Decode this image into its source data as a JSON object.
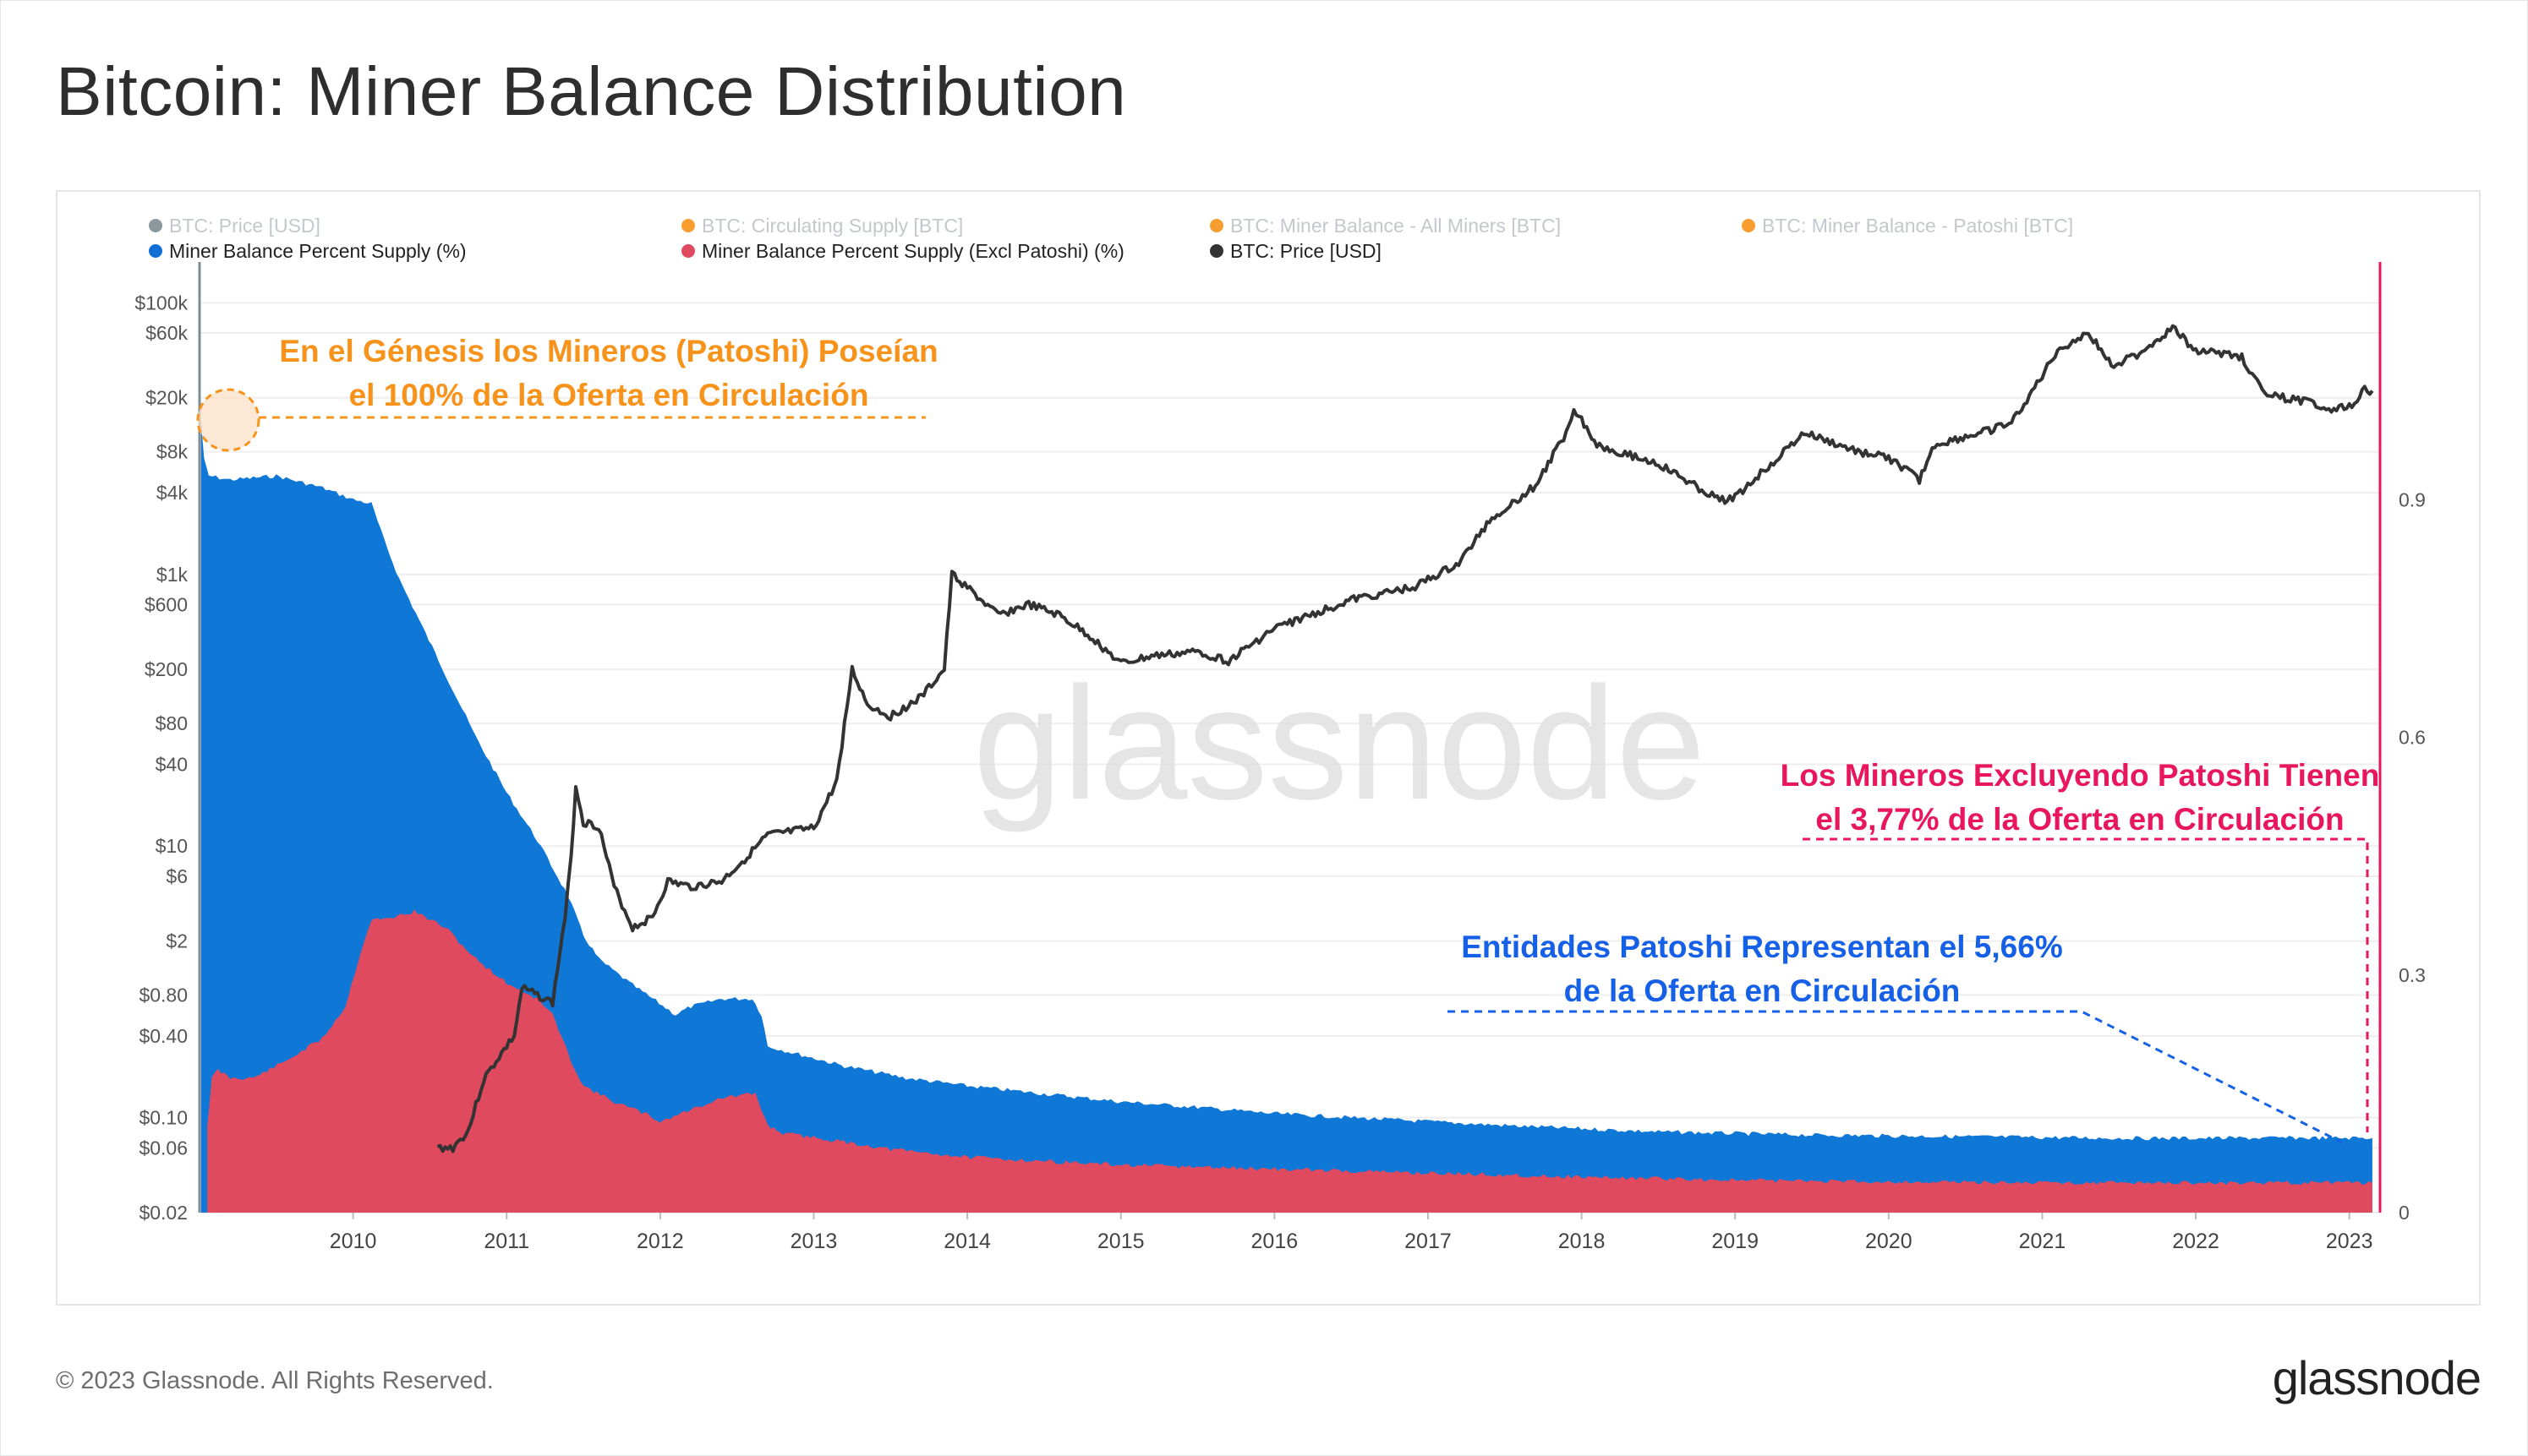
{
  "title": "Bitcoin: Miner Balance Distribution",
  "footer": {
    "copyright": "© 2023 Glassnode. All Rights Reserved.",
    "logo": "glassnode"
  },
  "watermark": "glassnode",
  "legend": [
    {
      "label": "BTC: Price [USD]",
      "color": "#7f8c94",
      "active": false
    },
    {
      "label": "BTC: Circulating Supply [BTC]",
      "color": "#f7931a",
      "active": false
    },
    {
      "label": "BTC: Miner Balance - All Miners [BTC]",
      "color": "#f7931a",
      "active": false
    },
    {
      "label": "BTC: Miner Balance - Patoshi [BTC]",
      "color": "#f7931a",
      "active": false
    },
    {
      "label": "Miner Balance Percent Supply (%)",
      "color": "#0f6fd6",
      "active": true
    },
    {
      "label": "Miner Balance Percent Supply (Excl Patoshi) (%)",
      "color": "#e04a5f",
      "active": true
    },
    {
      "label": "BTC: Price [USD]",
      "color": "#333333",
      "active": true
    }
  ],
  "annotations": {
    "genesis": {
      "lines": [
        "En el Génesis los Mineros (Patoshi) Poseían",
        "el 100% de la Oferta en Circulación"
      ],
      "color": "#f7931a"
    },
    "excl_patoshi": {
      "lines": [
        "Los Mineros Excluyendo Patoshi Tienen",
        "el 3,77% de la Oferta en Circulación"
      ],
      "color": "#e8175d"
    },
    "patoshi": {
      "lines": [
        "Entidades Patoshi Representan el 5,66%",
        "de la Oferta en Circulación"
      ],
      "color": "#1560e6"
    }
  },
  "colors": {
    "all_miners": "#0f77d6",
    "excl_patoshi": "#e04a5f",
    "price": "#333333",
    "right_axis": "#e8175d",
    "grid": "#eeeeee"
  },
  "chart_data": {
    "type": "area",
    "title": "Bitcoin: Miner Balance Distribution",
    "x_ticks": [
      "2010",
      "2011",
      "2012",
      "2013",
      "2014",
      "2015",
      "2016",
      "2017",
      "2018",
      "2019",
      "2020",
      "2021",
      "2022",
      "2023"
    ],
    "x_range": [
      2009.0,
      2023.2
    ],
    "y_left": {
      "scale": "log",
      "unit": "USD",
      "range": [
        0.02,
        200000
      ],
      "ticks": [
        {
          "v": 100000,
          "label": "$100k"
        },
        {
          "v": 60000,
          "label": "$60k"
        },
        {
          "v": 20000,
          "label": "$20k"
        },
        {
          "v": 8000,
          "label": "$8k"
        },
        {
          "v": 4000,
          "label": "$4k"
        },
        {
          "v": 1000,
          "label": "$1k"
        },
        {
          "v": 600,
          "label": "$600"
        },
        {
          "v": 200,
          "label": "$200"
        },
        {
          "v": 80,
          "label": "$80"
        },
        {
          "v": 40,
          "label": "$40"
        },
        {
          "v": 10,
          "label": "$10"
        },
        {
          "v": 6,
          "label": "$6"
        },
        {
          "v": 2,
          "label": "$2"
        },
        {
          "v": 0.8,
          "label": "$0.80"
        },
        {
          "v": 0.4,
          "label": "$0.40"
        },
        {
          "v": 0.1,
          "label": "$0.10"
        },
        {
          "v": 0.06,
          "label": "$0.06"
        },
        {
          "v": 0.02,
          "label": "$0.02"
        }
      ]
    },
    "y_right": {
      "scale": "linear",
      "range": [
        0,
        1.2
      ],
      "ticks": [
        {
          "v": 0,
          "label": "0"
        },
        {
          "v": 0.3,
          "label": "0.3"
        },
        {
          "v": 0.6,
          "label": "0.6"
        },
        {
          "v": 0.9,
          "label": "0.9"
        }
      ]
    },
    "series": [
      {
        "name": "Miner Balance Percent Supply (%)",
        "axis": "right",
        "points": [
          [
            2009.01,
            1.0
          ],
          [
            2009.03,
            0.95
          ],
          [
            2009.06,
            0.93
          ],
          [
            2009.2,
            0.925
          ],
          [
            2009.5,
            0.93
          ],
          [
            2009.8,
            0.915
          ],
          [
            2010.0,
            0.9
          ],
          [
            2010.12,
            0.895
          ],
          [
            2010.2,
            0.85
          ],
          [
            2010.3,
            0.8
          ],
          [
            2010.45,
            0.74
          ],
          [
            2010.6,
            0.68
          ],
          [
            2010.8,
            0.6
          ],
          [
            2011.0,
            0.53
          ],
          [
            2011.2,
            0.47
          ],
          [
            2011.4,
            0.4
          ],
          [
            2011.5,
            0.35
          ],
          [
            2011.6,
            0.32
          ],
          [
            2011.8,
            0.29
          ],
          [
            2011.95,
            0.27
          ],
          [
            2012.1,
            0.25
          ],
          [
            2012.2,
            0.26
          ],
          [
            2012.4,
            0.27
          ],
          [
            2012.6,
            0.27
          ],
          [
            2012.66,
            0.25
          ],
          [
            2012.7,
            0.21
          ],
          [
            2012.9,
            0.2
          ],
          [
            2013.2,
            0.185
          ],
          [
            2013.6,
            0.17
          ],
          [
            2014.0,
            0.16
          ],
          [
            2014.5,
            0.15
          ],
          [
            2015.0,
            0.14
          ],
          [
            2015.5,
            0.133
          ],
          [
            2016.0,
            0.125
          ],
          [
            2016.5,
            0.12
          ],
          [
            2017.0,
            0.115
          ],
          [
            2017.5,
            0.11
          ],
          [
            2018.0,
            0.106
          ],
          [
            2018.5,
            0.102
          ],
          [
            2019.0,
            0.1
          ],
          [
            2019.5,
            0.098
          ],
          [
            2020.0,
            0.097
          ],
          [
            2020.5,
            0.096
          ],
          [
            2021.0,
            0.095
          ],
          [
            2021.5,
            0.094
          ],
          [
            2022.0,
            0.094
          ],
          [
            2022.5,
            0.0943
          ],
          [
            2023.15,
            0.0943
          ]
        ]
      },
      {
        "name": "Miner Balance Percent Supply (Excl Patoshi) (%)",
        "axis": "right",
        "points": [
          [
            2009.05,
            0.11
          ],
          [
            2009.08,
            0.17
          ],
          [
            2009.12,
            0.18
          ],
          [
            2009.2,
            0.17
          ],
          [
            2009.35,
            0.17
          ],
          [
            2009.55,
            0.19
          ],
          [
            2009.8,
            0.22
          ],
          [
            2009.95,
            0.26
          ],
          [
            2010.05,
            0.33
          ],
          [
            2010.12,
            0.37
          ],
          [
            2010.2,
            0.37
          ],
          [
            2010.4,
            0.38
          ],
          [
            2010.6,
            0.36
          ],
          [
            2010.8,
            0.32
          ],
          [
            2011.0,
            0.29
          ],
          [
            2011.2,
            0.27
          ],
          [
            2011.3,
            0.25
          ],
          [
            2011.4,
            0.2
          ],
          [
            2011.5,
            0.16
          ],
          [
            2011.7,
            0.14
          ],
          [
            2011.9,
            0.125
          ],
          [
            2012.0,
            0.115
          ],
          [
            2012.2,
            0.13
          ],
          [
            2012.4,
            0.145
          ],
          [
            2012.62,
            0.15
          ],
          [
            2012.7,
            0.11
          ],
          [
            2012.8,
            0.1
          ],
          [
            2013.0,
            0.095
          ],
          [
            2013.5,
            0.08
          ],
          [
            2014.0,
            0.07
          ],
          [
            2015.0,
            0.06
          ],
          [
            2016.0,
            0.055
          ],
          [
            2017.0,
            0.05
          ],
          [
            2018.0,
            0.045
          ],
          [
            2019.0,
            0.041
          ],
          [
            2020.0,
            0.039
          ],
          [
            2021.0,
            0.038
          ],
          [
            2022.0,
            0.0377
          ],
          [
            2023.15,
            0.0377
          ]
        ]
      },
      {
        "name": "BTC: Price [USD]",
        "axis": "left",
        "points": [
          [
            2010.55,
            0.06
          ],
          [
            2010.65,
            0.06
          ],
          [
            2010.75,
            0.08
          ],
          [
            2010.85,
            0.19
          ],
          [
            2010.95,
            0.28
          ],
          [
            2011.05,
            0.4
          ],
          [
            2011.1,
            0.9
          ],
          [
            2011.2,
            0.8
          ],
          [
            2011.3,
            0.7
          ],
          [
            2011.38,
            3.0
          ],
          [
            2011.42,
            8.0
          ],
          [
            2011.45,
            28.0
          ],
          [
            2011.5,
            15.0
          ],
          [
            2011.6,
            14.0
          ],
          [
            2011.7,
            5.0
          ],
          [
            2011.82,
            2.5
          ],
          [
            2011.95,
            3.0
          ],
          [
            2012.05,
            5.5
          ],
          [
            2012.2,
            5.0
          ],
          [
            2012.4,
            5.5
          ],
          [
            2012.55,
            8.0
          ],
          [
            2012.7,
            12.0
          ],
          [
            2012.9,
            13.0
          ],
          [
            2013.0,
            13.5
          ],
          [
            2013.15,
            30.0
          ],
          [
            2013.25,
            200.0
          ],
          [
            2013.35,
            110.0
          ],
          [
            2013.5,
            90.0
          ],
          [
            2013.7,
            125.0
          ],
          [
            2013.85,
            200.0
          ],
          [
            2013.9,
            1000.0
          ],
          [
            2014.0,
            800.0
          ],
          [
            2014.2,
            500.0
          ],
          [
            2014.4,
            600.0
          ],
          [
            2014.6,
            500.0
          ],
          [
            2014.8,
            350.0
          ],
          [
            2015.0,
            220.0
          ],
          [
            2015.2,
            250.0
          ],
          [
            2015.5,
            270.0
          ],
          [
            2015.7,
            230.0
          ],
          [
            2016.0,
            400.0
          ],
          [
            2016.5,
            650.0
          ],
          [
            2016.9,
            800.0
          ],
          [
            2017.2,
            1200.0
          ],
          [
            2017.4,
            2500.0
          ],
          [
            2017.7,
            4500.0
          ],
          [
            2017.9,
            11000.0
          ],
          [
            2017.95,
            17000.0
          ],
          [
            2018.1,
            9000.0
          ],
          [
            2018.5,
            6500.0
          ],
          [
            2018.9,
            3500.0
          ],
          [
            2019.0,
            3700.0
          ],
          [
            2019.45,
            11000.0
          ],
          [
            2019.8,
            8000.0
          ],
          [
            2020.0,
            7200.0
          ],
          [
            2020.2,
            5000.0
          ],
          [
            2020.3,
            9000.0
          ],
          [
            2020.6,
            11000.0
          ],
          [
            2020.8,
            13000.0
          ],
          [
            2021.0,
            29000.0
          ],
          [
            2021.1,
            45000.0
          ],
          [
            2021.3,
            60000.0
          ],
          [
            2021.45,
            35000.0
          ],
          [
            2021.6,
            40000.0
          ],
          [
            2021.85,
            65000.0
          ],
          [
            2022.0,
            45000.0
          ],
          [
            2022.3,
            40000.0
          ],
          [
            2022.45,
            21000.0
          ],
          [
            2022.7,
            19000.0
          ],
          [
            2022.9,
            16500.0
          ],
          [
            2023.0,
            17000.0
          ],
          [
            2023.1,
            23000.0
          ],
          [
            2023.15,
            22500.0
          ]
        ]
      }
    ]
  }
}
